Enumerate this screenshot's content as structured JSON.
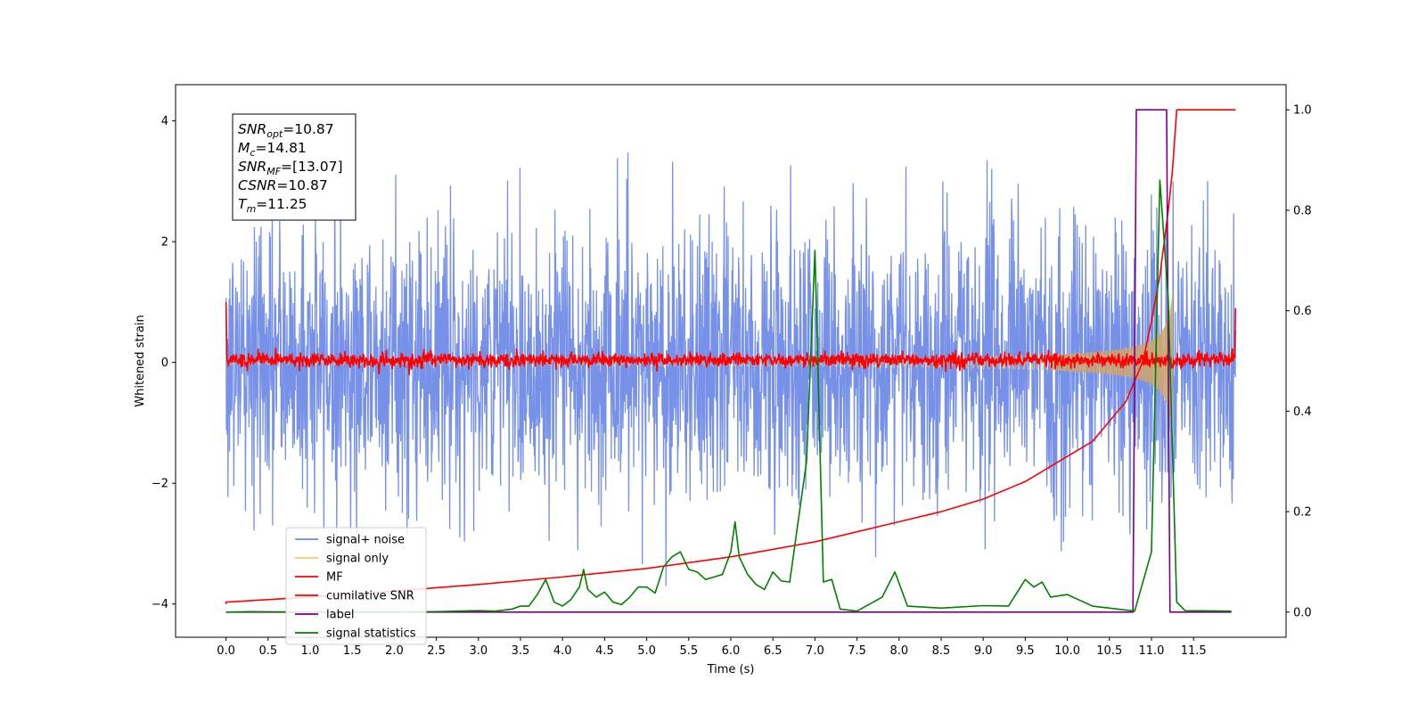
{
  "chart_data": {
    "type": "line",
    "xlabel": "Time (s)",
    "ylabel": "Whitened strain",
    "xlim": [
      -0.6,
      12.6
    ],
    "ylim": [
      -4.55,
      4.6
    ],
    "y2lim": [
      -0.05,
      1.05
    ],
    "x_ticks": [
      "0.0",
      "0.5",
      "1.0",
      "1.5",
      "2.0",
      "2.5",
      "3.0",
      "3.5",
      "4.0",
      "4.5",
      "5.0",
      "5.5",
      "6.0",
      "6.5",
      "7.0",
      "7.5",
      "8.0",
      "8.5",
      "9.0",
      "9.5",
      "10.0",
      "10.5",
      "11.0",
      "11.5"
    ],
    "y_ticks": [
      "4",
      "2",
      "0",
      "−2",
      "−4"
    ],
    "y2_ticks": [
      "1.0",
      "0.8",
      "0.6",
      "0.4",
      "0.2",
      "0.0"
    ],
    "grid": false,
    "legend_position": "lower-left",
    "stats": [
      {
        "sym": "SNR",
        "sub": "opt",
        "rest": "=10.87"
      },
      {
        "sym": "M",
        "sub": "c",
        "rest": "=14.81"
      },
      {
        "sym": "SNR",
        "sub": "MF",
        "rest": "=[13.07]"
      },
      {
        "sym": "CSNR",
        "sub": "",
        "rest": "=10.87"
      },
      {
        "sym": "T",
        "sub": "m",
        "rest": "=11.25"
      }
    ],
    "series": [
      {
        "name": "signal+ noise",
        "color": "#6f8be6",
        "axis": "left",
        "kind": "noise",
        "x_range": [
          0,
          12
        ],
        "amplitude_range": [
          -3.7,
          4.2
        ]
      },
      {
        "name": "signal only",
        "color": "#f5c86e",
        "axis": "left",
        "kind": "chirp",
        "x_range": [
          0,
          11.25
        ]
      },
      {
        "name": "MF",
        "color": "#ff0000",
        "axis": "left",
        "kind": "noise",
        "x_range": [
          0,
          12
        ]
      },
      {
        "name": "cumilative SNR",
        "color": "#ff0000",
        "axis": "right",
        "x": [
          0.0,
          1.0,
          2.0,
          3.0,
          4.0,
          5.0,
          6.0,
          7.0,
          8.0,
          8.5,
          9.0,
          9.5,
          10.0,
          10.3,
          10.5,
          10.7,
          10.9,
          11.0,
          11.1,
          11.2,
          11.25,
          11.3,
          12.0
        ],
        "y": [
          0.02,
          0.03,
          0.042,
          0.055,
          0.07,
          0.087,
          0.11,
          0.14,
          0.18,
          0.2,
          0.225,
          0.26,
          0.31,
          0.34,
          0.38,
          0.42,
          0.5,
          0.58,
          0.67,
          0.8,
          0.88,
          1.0,
          1.0
        ]
      },
      {
        "name": "label",
        "color": "#7a0080",
        "axis": "right",
        "x": [
          0.0,
          10.78,
          10.82,
          11.18,
          11.22,
          11.95
        ],
        "y": [
          0.0,
          0.0,
          1.0,
          1.0,
          0.0,
          0.0
        ]
      },
      {
        "name": "signal statistics",
        "color": "#008000",
        "axis": "right",
        "x": [
          0.0,
          0.3,
          1.0,
          2.0,
          2.5,
          3.0,
          3.2,
          3.4,
          3.5,
          3.6,
          3.7,
          3.8,
          3.9,
          4.0,
          4.1,
          4.2,
          4.25,
          4.3,
          4.4,
          4.5,
          4.6,
          4.7,
          4.8,
          4.9,
          5.0,
          5.1,
          5.2,
          5.3,
          5.4,
          5.5,
          5.6,
          5.7,
          5.8,
          5.9,
          6.0,
          6.05,
          6.1,
          6.2,
          6.3,
          6.4,
          6.5,
          6.6,
          6.7,
          6.8,
          6.9,
          7.0,
          7.1,
          7.2,
          7.3,
          7.5,
          7.8,
          7.95,
          8.1,
          8.5,
          9.0,
          9.3,
          9.5,
          9.6,
          9.7,
          9.8,
          10.0,
          10.3,
          10.5,
          10.8,
          11.0,
          11.1,
          11.2,
          11.3,
          11.4,
          11.95
        ],
        "y": [
          0.0,
          0.001,
          0.0,
          0.0,
          0.001,
          0.003,
          0.002,
          0.006,
          0.012,
          0.012,
          0.035,
          0.065,
          0.02,
          0.012,
          0.025,
          0.05,
          0.085,
          0.045,
          0.03,
          0.04,
          0.02,
          0.015,
          0.03,
          0.05,
          0.05,
          0.038,
          0.09,
          0.11,
          0.12,
          0.085,
          0.08,
          0.065,
          0.07,
          0.075,
          0.12,
          0.18,
          0.11,
          0.075,
          0.055,
          0.045,
          0.08,
          0.062,
          0.06,
          0.18,
          0.3,
          0.72,
          0.06,
          0.065,
          0.006,
          0.002,
          0.03,
          0.08,
          0.012,
          0.008,
          0.013,
          0.012,
          0.065,
          0.05,
          0.06,
          0.03,
          0.035,
          0.012,
          0.008,
          0.002,
          0.12,
          0.86,
          0.62,
          0.02,
          0.003,
          0.002
        ]
      }
    ]
  }
}
